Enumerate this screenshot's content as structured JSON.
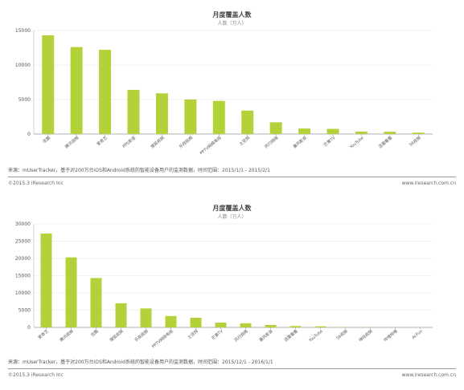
{
  "chart_data": [
    {
      "type": "bar",
      "title": "月度覆盖人数",
      "subtitle": "人数（万人）",
      "categories": [
        "优酷",
        "腾讯视频",
        "爱奇艺",
        "PPS影音",
        "搜狐视频",
        "乐视视频",
        "PPTV网络电视",
        "土豆网",
        "风行网络",
        "暴风影音",
        "芒果TV",
        "YouTube",
        "迅雷看看",
        "56视频"
      ],
      "values": [
        14300,
        12600,
        12200,
        6400,
        5900,
        5000,
        4800,
        3400,
        1700,
        800,
        750,
        350,
        330,
        200
      ],
      "yticks": [
        "0",
        "5000",
        "10000",
        "15000"
      ],
      "ylim": [
        0,
        15000
      ],
      "bar_color": "#b3d23a",
      "grid": true
    },
    {
      "type": "bar",
      "title": "月度覆盖人数",
      "subtitle": "人数（万人）",
      "categories": [
        "爱奇艺",
        "腾讯视频",
        "优酷",
        "搜狐视频",
        "乐视视频",
        "PPTV网络电视",
        "土豆网",
        "芒果TV",
        "风行网络",
        "暴风影音",
        "迅雷看看",
        "YouTube",
        "56视频",
        "咪咕视频",
        "哔哩哔哩",
        "AcFun"
      ],
      "values": [
        27200,
        20300,
        14300,
        7000,
        5500,
        3300,
        2800,
        1400,
        1200,
        700,
        400,
        300,
        60,
        40,
        30,
        20
      ],
      "yticks": [
        "0",
        "5000",
        "10000",
        "15000",
        "20000",
        "25000",
        "30000"
      ],
      "ylim": [
        0,
        30000
      ],
      "bar_color": "#b3d23a",
      "grid": true
    }
  ],
  "footers": [
    {
      "source": "来源：mUserTracker，基于对200万台iOS和Android系统的智能设备用户的监测数据，时间范围：2015/1/1 - 2015/2/1",
      "copyright": "©2015.3 iResearch Inc",
      "website": "www.iresearch.com.cn"
    },
    {
      "source": "来源：mUserTracker，基于对200万台iOS和Android系统的智能设备用户的监测数据，时间范围：2015/12/1 - 2016/1/1",
      "copyright": "©2015.3 iResearch Inc",
      "website": "www.iresearch.com.cn"
    }
  ]
}
